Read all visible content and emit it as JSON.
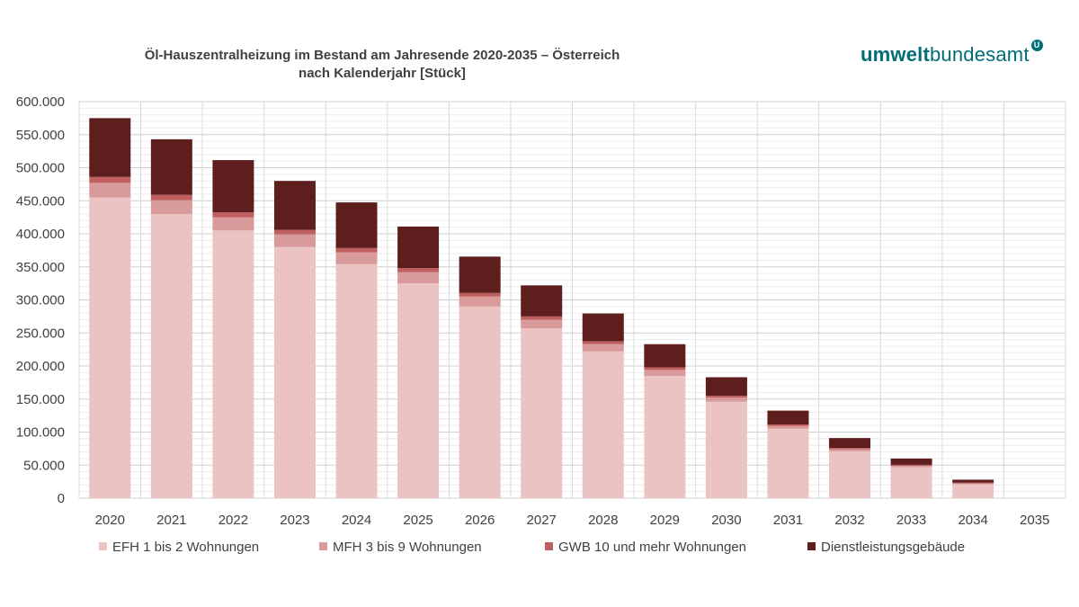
{
  "title_line1": "Öl-Hauszentralheizung im Bestand am Jahresende 2020-2035 – Österreich",
  "title_line2": "nach Kalenderjahr [Stück]",
  "logo": {
    "part1": "umwelt",
    "part2": "bundesamt",
    "mark": "U"
  },
  "chart_data": {
    "type": "bar",
    "stacked": true,
    "title": "Öl-Hauszentralheizung im Bestand am Jahresende 2020-2035 – Österreich nach Kalenderjahr [Stück]",
    "xlabel": "",
    "ylabel": "",
    "ylim": [
      0,
      600000
    ],
    "yticks": [
      0,
      50000,
      100000,
      150000,
      200000,
      250000,
      300000,
      350000,
      400000,
      450000,
      500000,
      550000,
      600000
    ],
    "ytick_labels": [
      "0",
      "50.000",
      "100.000",
      "150.000",
      "200.000",
      "250.000",
      "300.000",
      "350.000",
      "400.000",
      "450.000",
      "500.000",
      "550.000",
      "600.000"
    ],
    "grid": true,
    "legend_position": "bottom",
    "categories": [
      "2020",
      "2021",
      "2022",
      "2023",
      "2024",
      "2025",
      "2026",
      "2027",
      "2028",
      "2029",
      "2030",
      "2031",
      "2032",
      "2033",
      "2034",
      "2035"
    ],
    "series": [
      {
        "name": "EFH 1 bis 2 Wohnungen",
        "color": "#ebc3c3",
        "values": [
          455000,
          430000,
          405000,
          380000,
          354000,
          325000,
          290000,
          257000,
          222000,
          185000,
          146000,
          105000,
          71000,
          47000,
          21000,
          0
        ]
      },
      {
        "name": "MFH 3 bis 9 Wohnungen",
        "color": "#d89a9a",
        "values": [
          22000,
          21000,
          20000,
          19000,
          18000,
          17000,
          15000,
          13000,
          11000,
          9000,
          6000,
          4000,
          3000,
          2000,
          1500,
          0
        ]
      },
      {
        "name": "GWB 10 und mehr Wohnungen",
        "color": "#c05f5f",
        "values": [
          9000,
          8000,
          7500,
          7000,
          6500,
          6000,
          5500,
          5000,
          4500,
          4000,
          3000,
          2500,
          2000,
          1500,
          1000,
          0
        ]
      },
      {
        "name": "Dienstleistungsgebäude",
        "color": "#5e1e1e",
        "values": [
          89000,
          84000,
          79000,
          74000,
          69000,
          63000,
          55000,
          47000,
          42000,
          35000,
          28000,
          21000,
          15000,
          9500,
          4500,
          0
        ]
      }
    ]
  }
}
